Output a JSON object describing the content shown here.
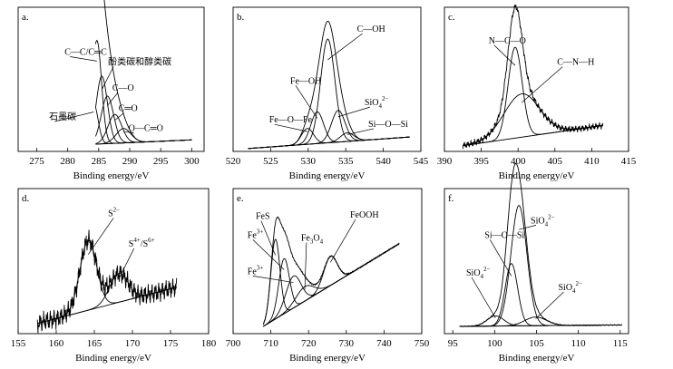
{
  "chart_data": [
    {
      "type": "line",
      "panel_label": "a.",
      "xlabel": "Binding energy/eV",
      "xlim": [
        272,
        302
      ],
      "ylim": [
        0,
        1
      ],
      "ticks": [
        275,
        280,
        285,
        290,
        295,
        300
      ],
      "baseline": [
        [
          284.5,
          0.05
        ],
        [
          300,
          0.08
        ]
      ],
      "peaks": [
        {
          "label": "C—C/C═C",
          "center": 284.7,
          "height": 0.72,
          "width": 0.75,
          "lab_x": 279.5,
          "lab_y": 0.67
        },
        {
          "label": "酚类碳和醇类碳",
          "center": 285.5,
          "height": 0.47,
          "width": 0.9,
          "lab_x": 286.5,
          "lab_y": 0.6
        },
        {
          "label": "石墨碳",
          "center": 284.2,
          "height": 0.28,
          "width": 0.7,
          "lab_x": 277.0,
          "lab_y": 0.22
        },
        {
          "label": "C—O",
          "center": 286.4,
          "height": 0.33,
          "width": 1.0,
          "lab_x": 287.2,
          "lab_y": 0.42
        },
        {
          "label": "C═O",
          "center": 287.6,
          "height": 0.2,
          "width": 1.1,
          "lab_x": 288.2,
          "lab_y": 0.28
        },
        {
          "label": "O—C═O",
          "center": 289.0,
          "height": 0.1,
          "width": 1.2,
          "lab_x": 289.8,
          "lab_y": 0.14
        }
      ],
      "noise": 0
    },
    {
      "type": "line",
      "panel_label": "b.",
      "xlabel": "Binding energy/eV",
      "xlim": [
        520,
        545
      ],
      "ylim": [
        0,
        1
      ],
      "ticks": [
        520,
        525,
        530,
        535,
        540,
        545
      ],
      "baseline": [
        [
          522,
          0.02
        ],
        [
          543.5,
          0.1
        ]
      ],
      "peaks": [
        {
          "label": "C—OH",
          "center": 532.6,
          "height": 0.72,
          "width": 0.95,
          "lab_x": 536.5,
          "lab_y": 0.83
        },
        {
          "label": "Fe—OH",
          "center": 531.2,
          "height": 0.22,
          "width": 0.85,
          "lab_x": 527.6,
          "lab_y": 0.47
        },
        {
          "label": "Fe—O—Fe",
          "center": 529.9,
          "height": 0.11,
          "width": 0.8,
          "lab_x": 524.8,
          "lab_y": 0.2
        },
        {
          "label": "SiO",
          "center": 534.0,
          "height": 0.22,
          "width": 0.9,
          "lab_x": 537.5,
          "lab_y": 0.32
        },
        {
          "label": "Si—O—Si",
          "center": 535.2,
          "height": 0.06,
          "width": 0.9,
          "lab_x": 538.0,
          "lab_y": 0.17
        }
      ],
      "noise": 0
    },
    {
      "type": "line",
      "panel_label": "c.",
      "xlabel": "Binding energy/eV",
      "xlim": [
        390,
        415
      ],
      "ylim": [
        0,
        1
      ],
      "ticks": [
        390,
        395,
        400,
        405,
        410,
        415
      ],
      "baseline": [
        [
          392.5,
          0.04
        ],
        [
          411.5,
          0.18
        ]
      ],
      "peaks": [
        {
          "label": "N—C—O",
          "center": 399.6,
          "height": 0.63,
          "width": 0.95,
          "lab_x": 396.0,
          "lab_y": 0.75
        },
        {
          "label": "C—N—H",
          "center": 400.5,
          "height": 0.3,
          "width": 2.4,
          "lab_x": 405.3,
          "lab_y": 0.6
        }
      ],
      "noise": 0.02
    },
    {
      "type": "line",
      "panel_label": "d.",
      "xlabel": "Binding energy/eV",
      "xlim": [
        155,
        180
      ],
      "ylim": [
        0,
        1
      ],
      "ticks": [
        155,
        160,
        165,
        170,
        175,
        180
      ],
      "baseline": [
        [
          157.5,
          0.07
        ],
        [
          175.8,
          0.32
        ]
      ],
      "peaks": [
        {
          "label": "S",
          "center": 164.2,
          "height": 0.48,
          "width": 1.1,
          "lab_x": 166.8,
          "lab_y": 0.81
        },
        {
          "label": "S",
          "center": 168.2,
          "height": 0.2,
          "width": 1.2,
          "lab_x": 169.5,
          "lab_y": 0.6
        }
      ],
      "noise": 0.06
    },
    {
      "type": "line",
      "panel_label": "e.",
      "xlabel": "Binding energy/eV",
      "xlim": [
        700,
        750
      ],
      "ylim": [
        0,
        1
      ],
      "ticks": [
        700,
        710,
        720,
        730,
        740,
        750
      ],
      "baseline": [
        [
          708.0,
          0.05
        ],
        [
          744.0,
          0.62
        ]
      ],
      "peaks": [
        {
          "label": "FeS",
          "center": 711.2,
          "height": 0.55,
          "width": 1.2,
          "lab_x": 706.0,
          "lab_y": 0.79
        },
        {
          "label": "Fe",
          "center": 713.5,
          "height": 0.38,
          "width": 1.4,
          "lab_x": 703.8,
          "lab_y": 0.66
        },
        {
          "label": "Fe",
          "center": 716.0,
          "height": 0.22,
          "width": 2.0,
          "lab_x": 703.8,
          "lab_y": 0.41
        },
        {
          "label": "Fe",
          "center": 719.0,
          "height": 0.1,
          "width": 2.4,
          "lab_x": 718.0,
          "lab_y": 0.64
        },
        {
          "label": "FeOOH",
          "center": 725.8,
          "height": 0.2,
          "width": 1.8,
          "lab_x": 731.0,
          "lab_y": 0.8
        }
      ],
      "noise": 0.005,
      "labels_extra": {
        "fe3_sup": "3+",
        "fe3o4_sub": "3",
        "fe3o4_sub2": "4",
        "fe3o4_tail": "O"
      }
    },
    {
      "type": "line",
      "panel_label": "f.",
      "xlabel": "Binding energy/eV",
      "xlim": [
        94,
        116
      ],
      "ylim": [
        0,
        1
      ],
      "ticks": [
        95,
        100,
        105,
        110,
        115
      ],
      "baseline": [
        [
          95.8,
          0.05
        ],
        [
          115.2,
          0.06
        ]
      ],
      "peaks": [
        {
          "label": "SiO",
          "center": 102.9,
          "height": 0.83,
          "width": 0.95,
          "lab_x": 104.3,
          "lab_y": 0.76
        },
        {
          "label": "Si—O—Si",
          "center": 102.0,
          "height": 0.43,
          "width": 0.75,
          "lab_x": 98.8,
          "lab_y": 0.66
        },
        {
          "label": "SiO",
          "center": 100.1,
          "height": 0.07,
          "width": 1.0,
          "lab_x": 96.6,
          "lab_y": 0.4
        },
        {
          "label": "SiO",
          "center": 104.9,
          "height": 0.06,
          "width": 1.3,
          "lab_x": 107.6,
          "lab_y": 0.3
        }
      ],
      "noise": 0.003
    }
  ],
  "labels": {
    "sio4_base": "SiO",
    "sio4_sub": "4",
    "sio4_sup": "2−",
    "s_base": "S",
    "s2_sup": "2−",
    "s46_sup_a": "4+",
    "s46_mid": "/S",
    "s46_sup_b": "6+"
  }
}
